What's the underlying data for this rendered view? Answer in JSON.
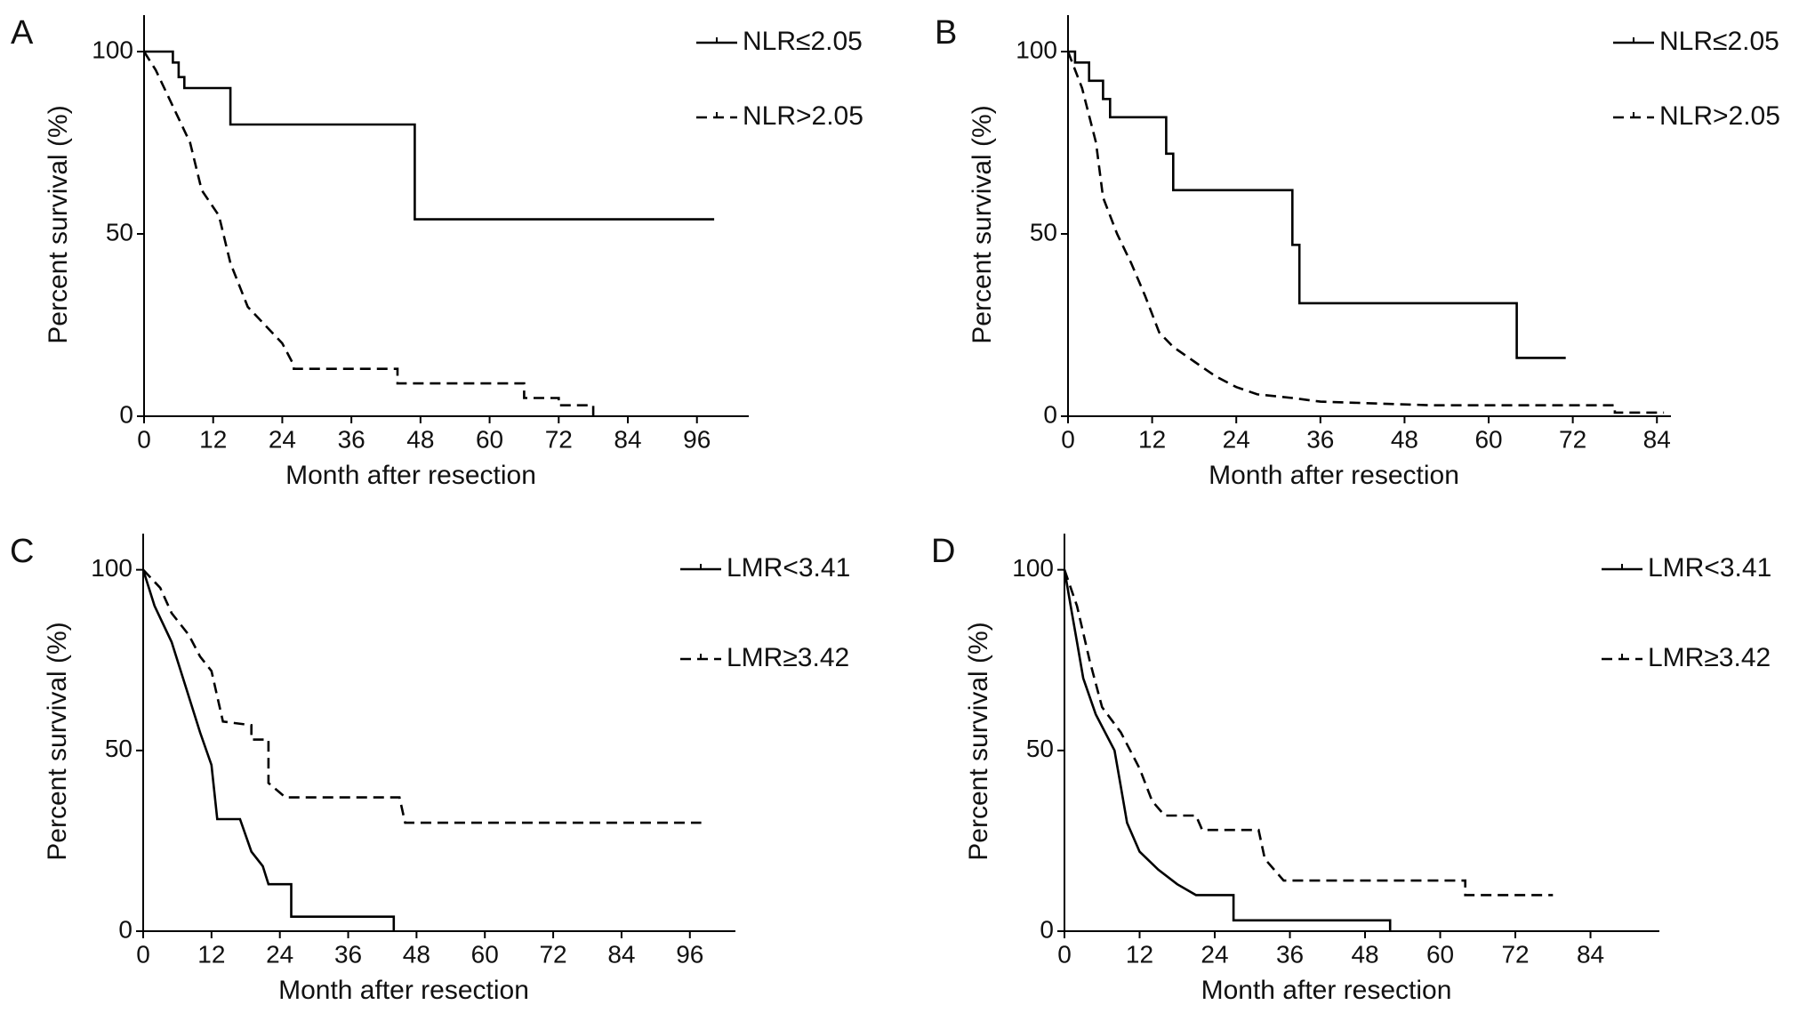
{
  "chart_data": [
    {
      "type": "line",
      "panel": "A",
      "xlabel": "Month after resection",
      "ylabel": "Percent survival (%)",
      "xlim": [
        0,
        105
      ],
      "ylim": [
        0,
        110
      ],
      "xticks": [
        0,
        12,
        24,
        36,
        48,
        60,
        72,
        84,
        96
      ],
      "yticks": [
        0,
        50,
        100
      ],
      "series": [
        {
          "name": "NLR≤2.05",
          "color": "#000000",
          "linestyle": "solid",
          "x": [
            0,
            5,
            5,
            6,
            6,
            7,
            7,
            15,
            15,
            47,
            47,
            99
          ],
          "values": [
            100,
            100,
            97,
            97,
            93,
            93,
            90,
            90,
            80,
            80,
            54,
            54
          ]
        },
        {
          "name": "NLR>2.05",
          "color": "#000000",
          "linestyle": "dashed",
          "x": [
            0,
            2,
            5,
            8,
            10,
            13,
            15,
            18,
            21,
            24,
            26,
            26,
            44,
            44,
            66,
            66,
            72,
            72,
            78,
            78
          ],
          "values": [
            100,
            95,
            85,
            75,
            62,
            55,
            42,
            30,
            25,
            20,
            14,
            13,
            13,
            9,
            9,
            5,
            5,
            3,
            3,
            0
          ]
        }
      ]
    },
    {
      "type": "line",
      "panel": "B",
      "xlabel": "Month after resection",
      "ylabel": "Percent survival (%)",
      "xlim": [
        0,
        86
      ],
      "ylim": [
        0,
        110
      ],
      "xticks": [
        0,
        12,
        24,
        36,
        48,
        60,
        72,
        84
      ],
      "yticks": [
        0,
        50,
        100
      ],
      "series": [
        {
          "name": "NLR≤2.05",
          "color": "#000000",
          "linestyle": "solid",
          "x": [
            0,
            1,
            1,
            3,
            3,
            5,
            5,
            6,
            6,
            14,
            14,
            15,
            15,
            32,
            32,
            33,
            33,
            64,
            64,
            71
          ],
          "values": [
            100,
            100,
            97,
            97,
            92,
            92,
            87,
            87,
            82,
            82,
            72,
            72,
            62,
            62,
            47,
            47,
            31,
            31,
            16,
            16
          ]
        },
        {
          "name": "NLR>2.05",
          "color": "#000000",
          "linestyle": "dashed",
          "x": [
            0,
            2,
            4,
            5,
            7,
            9,
            11,
            13,
            15,
            18,
            21,
            24,
            27,
            32,
            36,
            52,
            78,
            78,
            85
          ],
          "values": [
            100,
            90,
            75,
            60,
            50,
            42,
            33,
            23,
            19,
            15,
            11,
            8,
            6,
            5,
            4,
            3,
            3,
            1,
            1
          ]
        }
      ]
    },
    {
      "type": "line",
      "panel": "C",
      "xlabel": "Month after resection",
      "ylabel": "Percent survival (%)",
      "xlim": [
        0,
        104
      ],
      "ylim": [
        0,
        110
      ],
      "xticks": [
        0,
        12,
        24,
        36,
        48,
        60,
        72,
        84,
        96
      ],
      "yticks": [
        0,
        50,
        100
      ],
      "series": [
        {
          "name": "LMR<3.41",
          "color": "#000000",
          "linestyle": "solid",
          "x": [
            0,
            2,
            5,
            7,
            10,
            12,
            13,
            17,
            19,
            21,
            22,
            26,
            26,
            44,
            44
          ],
          "values": [
            100,
            90,
            80,
            70,
            55,
            46,
            31,
            31,
            22,
            18,
            13,
            13,
            4,
            4,
            0
          ]
        },
        {
          "name": "LMR≥3.42",
          "color": "#000000",
          "linestyle": "dashed",
          "x": [
            0,
            3,
            5,
            8,
            10,
            12,
            14,
            19,
            19,
            22,
            22,
            25,
            45,
            46,
            98
          ],
          "values": [
            100,
            95,
            88,
            82,
            76,
            72,
            58,
            57,
            53,
            53,
            41,
            37,
            37,
            30,
            30
          ]
        }
      ]
    },
    {
      "type": "line",
      "panel": "D",
      "xlabel": "Month after resection",
      "ylabel": "Percent survival (%)",
      "xlim": [
        0,
        95
      ],
      "ylim": [
        0,
        110
      ],
      "xticks": [
        0,
        12,
        24,
        36,
        48,
        60,
        72,
        84
      ],
      "yticks": [
        0,
        50,
        100
      ],
      "series": [
        {
          "name": "LMR<3.41",
          "color": "#000000",
          "linestyle": "solid",
          "x": [
            0,
            1,
            2,
            3,
            5,
            8,
            9,
            10,
            12,
            15,
            18,
            21,
            27,
            27,
            52,
            52
          ],
          "values": [
            100,
            90,
            80,
            70,
            60,
            50,
            40,
            30,
            22,
            17,
            13,
            10,
            10,
            3,
            3,
            0
          ]
        },
        {
          "name": "LMR≥3.42",
          "color": "#000000",
          "linestyle": "dashed",
          "x": [
            0,
            2,
            4,
            6,
            9,
            12,
            14,
            16,
            21,
            22,
            31,
            32,
            35,
            64,
            64,
            78
          ],
          "values": [
            100,
            90,
            75,
            62,
            55,
            45,
            36,
            32,
            32,
            28,
            28,
            20,
            14,
            14,
            10,
            10
          ]
        }
      ]
    }
  ]
}
